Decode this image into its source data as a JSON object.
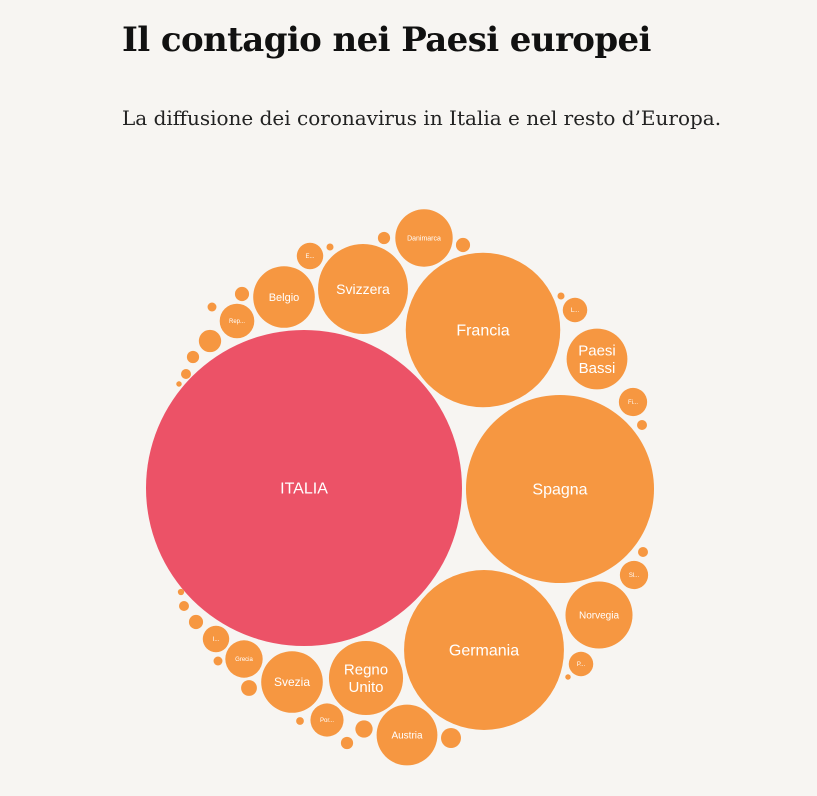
{
  "header": {
    "title": "Il contagio nei Paesi europei",
    "subtitle": "La diffusione dei coronavirus in Italia e nel resto d’Europa."
  },
  "colors": {
    "highlight": "#ec5267",
    "others": "#f69741",
    "background": "#f7f5f2"
  },
  "chart_data": {
    "type": "packed-bubble",
    "title": "Il contagio nei Paesi europei",
    "subtitle": "La diffusione dei coronavirus in Italia e nel resto d’Europa.",
    "values_shown_as": "circle area (relative size)",
    "nodes": [
      {
        "label": "ITALIA",
        "value": 100,
        "highlight": true
      },
      {
        "label": "Spagna",
        "value": 35.4
      },
      {
        "label": "Germania",
        "value": 25.6
      },
      {
        "label": "Francia",
        "value": 23.9
      },
      {
        "label": "Svizzera",
        "value": 8.1
      },
      {
        "label": "Paesi Bassi",
        "value": 3.7
      },
      {
        "label": "Regno Unito",
        "value": 5.5
      },
      {
        "label": "Austria",
        "value": 3.7
      },
      {
        "label": "Belgio",
        "value": 3.8
      },
      {
        "label": "Norvegia",
        "value": 4.5
      },
      {
        "label": "Svezia",
        "value": 3.8
      },
      {
        "label": "Danimarca",
        "value": 3.3
      },
      {
        "label": "Grecia",
        "value": 1.4
      },
      {
        "label": "Por...",
        "value": 1.1
      },
      {
        "label": "Rep...",
        "value": 1.2
      },
      {
        "label": "Fi...",
        "value": 0.8
      },
      {
        "label": "Sl...",
        "value": 0.8
      },
      {
        "label": "P...",
        "value": 0.6
      },
      {
        "label": "E...",
        "value": 0.7
      },
      {
        "label": "I...",
        "value": 0.7
      },
      {
        "label": "L...",
        "value": 0.6
      },
      {
        "label": "",
        "value": 0.5
      },
      {
        "label": "",
        "value": 0.4
      },
      {
        "label": "",
        "value": 0.3
      },
      {
        "label": "",
        "value": 0.25
      },
      {
        "label": "",
        "value": 0.2
      },
      {
        "label": "",
        "value": 0.2
      },
      {
        "label": "",
        "value": 0.2
      },
      {
        "label": "",
        "value": 0.15
      },
      {
        "label": "",
        "value": 0.15
      },
      {
        "label": "",
        "value": 0.15
      },
      {
        "label": "",
        "value": 0.1
      },
      {
        "label": "",
        "value": 0.1
      },
      {
        "label": "",
        "value": 0.1
      },
      {
        "label": "",
        "value": 0.1
      },
      {
        "label": "",
        "value": 0.08
      },
      {
        "label": "",
        "value": 0.08
      },
      {
        "label": "",
        "value": 0.06
      },
      {
        "label": "",
        "value": 0.05
      },
      {
        "label": "",
        "value": 0.05
      },
      {
        "label": "",
        "value": 0.04
      },
      {
        "label": "",
        "value": 0.03
      },
      {
        "label": "",
        "value": 0.03
      }
    ]
  }
}
